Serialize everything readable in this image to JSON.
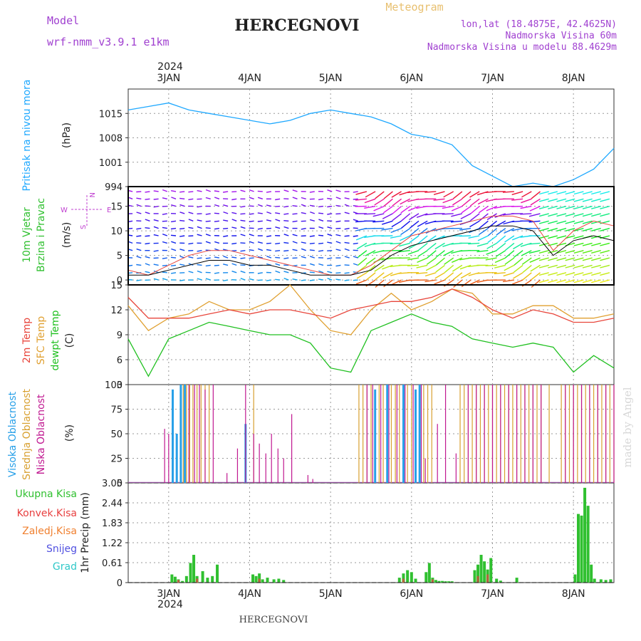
{
  "header": {
    "title": "HERCEGNOVI",
    "meteogram_label": "Meteogram",
    "model_label": "Model",
    "model_name": "wrf-nmm_v3.9.1  e1km",
    "lonlat": "lon,lat (18.4875E, 42.4625N)",
    "altitude": "Nadmorska Visina 60m",
    "model_altitude": "Nadmorska Visina u modelu 88.4629m"
  },
  "footer": {
    "title": "HERCEGNOVI",
    "watermark": "made by Angel"
  },
  "colors": {
    "pressure": "#1ea8ff",
    "temp2m": "#e8463c",
    "sfc": "#e0a030",
    "dewpt": "#20c020",
    "high_cloud": "#28a0e8",
    "mid_cloud": "#d8a030",
    "low_cloud": "#c01890",
    "rain_total": "#30c030",
    "rain_conv": "#e84040",
    "rain_freeze": "#f08030",
    "snow": "#5050e0",
    "grad": "#30c8c8",
    "title_purple": "#a040d0",
    "meteogram_gold": "#e8c070"
  },
  "time_axis": {
    "year": "2024",
    "days": [
      "3JAN",
      "4JAN",
      "5JAN",
      "6JAN",
      "7JAN",
      "8JAN"
    ]
  },
  "wind_legend": {
    "w": "W",
    "e": "E",
    "n": "N",
    "s": "S"
  },
  "chart_data": [
    {
      "type": "line",
      "panel": "pressure",
      "ylabel": "Pritisak na nivou mora",
      "unit": "(hPa)",
      "ylim": [
        994,
        1022
      ],
      "yticks": [
        "1015",
        "1008",
        "1001",
        "994"
      ],
      "x": [
        2.5,
        2.75,
        3.0,
        3.25,
        3.5,
        3.75,
        4.0,
        4.25,
        4.5,
        4.75,
        5.0,
        5.25,
        5.5,
        5.75,
        6.0,
        6.25,
        6.5,
        6.75,
        7.0,
        7.25,
        7.5,
        7.75,
        8.0,
        8.25,
        8.5
      ],
      "series": [
        {
          "name": "pressure",
          "values": [
            1016,
            1017,
            1018,
            1016,
            1015,
            1014,
            1013,
            1012,
            1013,
            1015,
            1016,
            1015,
            1014,
            1012,
            1009,
            1008,
            1006,
            1000,
            997,
            994,
            995,
            994,
            996,
            999,
            1005
          ]
        }
      ]
    },
    {
      "type": "line",
      "panel": "wind",
      "ylabel_a": "10m Vjetar",
      "ylabel_b": "Brzina i Pravac",
      "unit": "(m/s)",
      "ylim": [
        -1,
        19
      ],
      "yticks": [
        "15",
        "10",
        "5",
        "0"
      ],
      "x": [
        2.5,
        2.75,
        3.0,
        3.25,
        3.5,
        3.75,
        4.0,
        4.25,
        4.5,
        4.75,
        5.0,
        5.25,
        5.5,
        5.75,
        6.0,
        6.25,
        6.5,
        6.75,
        7.0,
        7.25,
        7.5,
        7.75,
        8.0,
        8.25,
        8.5
      ],
      "series": [
        {
          "name": "gust",
          "values": [
            2,
            1,
            3,
            5,
            6,
            6,
            5,
            4,
            3,
            2,
            1,
            1,
            3,
            6,
            9,
            10,
            11,
            12,
            13,
            13,
            12,
            6,
            10,
            12,
            11
          ]
        },
        {
          "name": "speed",
          "values": [
            1,
            1,
            2,
            3,
            4,
            4,
            3,
            3,
            2,
            1,
            1,
            1,
            2,
            5,
            7,
            8,
            9,
            10,
            11,
            11,
            10,
            5,
            8,
            9,
            8
          ]
        }
      ]
    },
    {
      "type": "line",
      "panel": "temperature",
      "ylabel_a": "2m Temp",
      "ylabel_b": "SFC Temp",
      "ylabel_c": "dewpt Temp",
      "unit": "(C)",
      "ylim": [
        3,
        15
      ],
      "yticks": [
        "15",
        "12",
        "9",
        "6",
        "3"
      ],
      "x": [
        2.5,
        2.75,
        3.0,
        3.25,
        3.5,
        3.75,
        4.0,
        4.25,
        4.5,
        4.75,
        5.0,
        5.25,
        5.5,
        5.75,
        6.0,
        6.25,
        6.5,
        6.75,
        7.0,
        7.25,
        7.5,
        7.75,
        8.0,
        8.25,
        8.5
      ],
      "series": [
        {
          "name": "2m Temp",
          "values": [
            13.5,
            11,
            11,
            11,
            11.5,
            12,
            11.5,
            12,
            12,
            11.5,
            11,
            12,
            12.5,
            13,
            13,
            13.5,
            14.5,
            13.5,
            12,
            11,
            12,
            11.5,
            10.5,
            10.5,
            11
          ]
        },
        {
          "name": "SFC Temp",
          "values": [
            12.5,
            9.5,
            11,
            11.5,
            13,
            12,
            12,
            13,
            15,
            12,
            9.5,
            9,
            12,
            14,
            12,
            13,
            14.5,
            14,
            11.5,
            11.5,
            12.5,
            12.5,
            11,
            11,
            11.5
          ]
        },
        {
          "name": "dewpt Temp",
          "values": [
            8.5,
            4,
            8.5,
            9.5,
            10.5,
            10,
            9.5,
            9,
            9,
            8,
            5,
            4.5,
            9.5,
            10.5,
            11.5,
            10.5,
            10,
            8.5,
            8,
            7.5,
            8,
            7.5,
            4.5,
            6.5,
            5
          ]
        }
      ]
    },
    {
      "type": "bar",
      "panel": "clouds",
      "ylabel_a": "Visoka Oblacnost",
      "ylabel_b": "Srednja Oblacnost",
      "ylabel_c": "Niska  Oblacnost",
      "unit": "(%)",
      "ylim": [
        0,
        100
      ],
      "yticks": [
        "100",
        "75",
        "50",
        "25",
        "0"
      ],
      "series": [
        {
          "name": "Visoka Oblacnost",
          "x": [
            3.05,
            3.1,
            3.15,
            3.2,
            3.95,
            5.55,
            5.7,
            5.9,
            6.05,
            6.1
          ],
          "values": [
            95,
            50,
            100,
            100,
            60,
            95,
            100,
            100,
            95,
            100
          ]
        },
        {
          "name": "Srednja Oblacnost",
          "x": [
            3.18,
            3.22,
            3.26,
            3.3,
            3.35,
            3.4,
            3.45,
            3.5,
            4.05,
            5.35,
            5.4,
            5.45,
            5.5,
            5.6,
            5.65,
            5.75,
            5.8,
            5.85,
            5.95,
            6.0,
            6.15,
            6.2,
            6.25,
            6.6,
            6.65,
            6.7,
            6.75,
            6.8,
            6.85,
            6.9,
            6.95,
            7.0,
            7.05,
            7.1,
            7.15,
            7.2,
            7.25,
            7.3,
            7.35,
            7.4,
            7.45,
            7.5,
            7.55,
            7.6,
            7.7,
            7.85,
            7.9,
            7.95,
            8.0,
            8.05,
            8.1,
            8.15,
            8.2,
            8.25,
            8.3,
            8.35,
            8.4,
            8.45,
            8.5
          ],
          "values": [
            100,
            100,
            100,
            100,
            100,
            100,
            100,
            100,
            100,
            100,
            100,
            100,
            100,
            100,
            100,
            100,
            100,
            100,
            100,
            100,
            100,
            100,
            100,
            100,
            100,
            100,
            100,
            100,
            100,
            100,
            100,
            100,
            100,
            100,
            100,
            100,
            100,
            100,
            100,
            100,
            100,
            100,
            100,
            100,
            100,
            100,
            100,
            100,
            100,
            100,
            100,
            100,
            100,
            100,
            100,
            100,
            100,
            100,
            100
          ]
        },
        {
          "name": "Niska  Oblacnost",
          "x": [
            2.95,
            3.0,
            3.25,
            3.32,
            3.38,
            3.45,
            3.55,
            3.72,
            3.85,
            3.95,
            4.05,
            4.12,
            4.2,
            4.27,
            4.35,
            4.42,
            4.52,
            4.72,
            4.78,
            5.45,
            5.52,
            5.62,
            5.72,
            5.82,
            5.92,
            6.02,
            6.12,
            6.17,
            6.32,
            6.42,
            6.55,
            6.7,
            6.8,
            6.9,
            7.0,
            7.1,
            7.2,
            7.3,
            7.4,
            7.5,
            7.6,
            7.9,
            8.0,
            8.1,
            8.2,
            8.3,
            8.4,
            8.5
          ],
          "values": [
            55,
            50,
            100,
            100,
            100,
            95,
            100,
            10,
            35,
            100,
            50,
            40,
            30,
            50,
            35,
            25,
            70,
            8,
            4,
            100,
            100,
            100,
            100,
            100,
            100,
            100,
            100,
            25,
            60,
            100,
            30,
            100,
            100,
            100,
            100,
            100,
            100,
            100,
            100,
            100,
            100,
            100,
            100,
            100,
            100,
            100,
            100,
            100
          ]
        }
      ]
    },
    {
      "type": "bar",
      "panel": "precipitation",
      "ylabel": "1hr Precip",
      "unit": "(mm)",
      "ylim": [
        0,
        3.05
      ],
      "yticks": [
        "3.05",
        "2.44",
        "1.83",
        "1.22",
        "0.61",
        "0"
      ],
      "legend": [
        "Ukupna  Kisa",
        "Konvek.Kisa",
        "Zaledj.Kisa",
        "Snijeg",
        "Grad"
      ],
      "series": [
        {
          "name": "Ukupna  Kisa",
          "x": [
            3.04,
            3.08,
            3.12,
            3.17,
            3.22,
            3.27,
            3.31,
            3.35,
            3.42,
            3.48,
            3.54,
            3.6,
            4.04,
            4.08,
            4.12,
            4.16,
            4.22,
            4.3,
            4.36,
            4.42,
            5.85,
            5.9,
            5.95,
            6.0,
            6.05,
            6.18,
            6.22,
            6.26,
            6.3,
            6.34,
            6.38,
            6.42,
            6.46,
            6.5,
            6.78,
            6.82,
            6.86,
            6.9,
            6.94,
            6.98,
            7.05,
            7.1,
            7.3,
            8.02,
            8.06,
            8.1,
            8.14,
            8.18,
            8.22,
            8.26,
            8.34,
            8.4,
            8.46
          ],
          "values": [
            0.25,
            0.18,
            0.1,
            0.05,
            0.2,
            0.6,
            0.85,
            0.2,
            0.35,
            0.15,
            0.2,
            0.55,
            0.25,
            0.2,
            0.28,
            0.1,
            0.15,
            0.1,
            0.12,
            0.08,
            0.15,
            0.28,
            0.38,
            0.32,
            0.12,
            0.32,
            0.6,
            0.15,
            0.08,
            0.05,
            0.05,
            0.04,
            0.04,
            0.04,
            0.38,
            0.55,
            0.85,
            0.65,
            0.4,
            0.75,
            0.12,
            0.06,
            0.15,
            0.25,
            2.1,
            2.05,
            2.9,
            2.35,
            0.55,
            0.12,
            0.1,
            0.08,
            0.1
          ]
        },
        {
          "name": "Konvek.Kisa",
          "x": [
            3.12,
            3.35,
            4.12,
            5.9,
            6.26,
            6.82,
            6.94
          ],
          "values": [
            0.08,
            0.12,
            0.12,
            0.12,
            0.1,
            0.2,
            0.25
          ]
        }
      ]
    }
  ]
}
